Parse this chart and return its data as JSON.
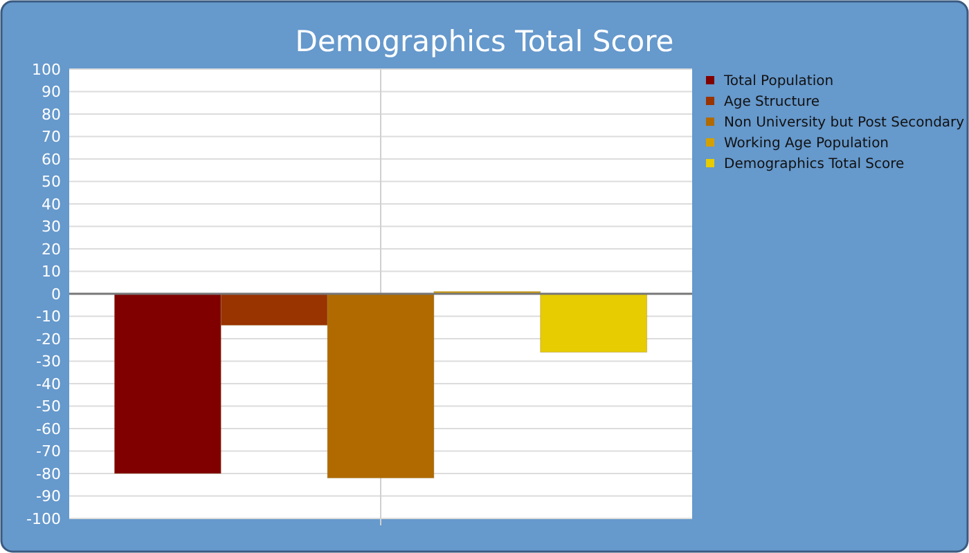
{
  "chart_data": {
    "type": "bar",
    "title": "Demographics Total Score",
    "categories": [
      null
    ],
    "series": [
      {
        "name": "Total Population",
        "color": "#800000",
        "values": [
          -80
        ]
      },
      {
        "name": "Age Structure",
        "color": "#993300",
        "values": [
          -14
        ]
      },
      {
        "name": "Non University but Post Secondary",
        "color": "#b06a00",
        "values": [
          -82
        ]
      },
      {
        "name": "Working Age Population",
        "color": "#d4a000",
        "values": [
          1
        ]
      },
      {
        "name": "Demographics Total Score",
        "color": "#e6cc00",
        "values": [
          -26
        ]
      }
    ],
    "ylim": [
      -100,
      100
    ],
    "yticks": [
      -100,
      -90,
      -80,
      -70,
      -60,
      -50,
      -40,
      -30,
      -20,
      -10,
      0,
      10,
      20,
      30,
      40,
      50,
      60,
      70,
      80,
      90,
      100
    ],
    "grid": true,
    "legend": "top right"
  }
}
